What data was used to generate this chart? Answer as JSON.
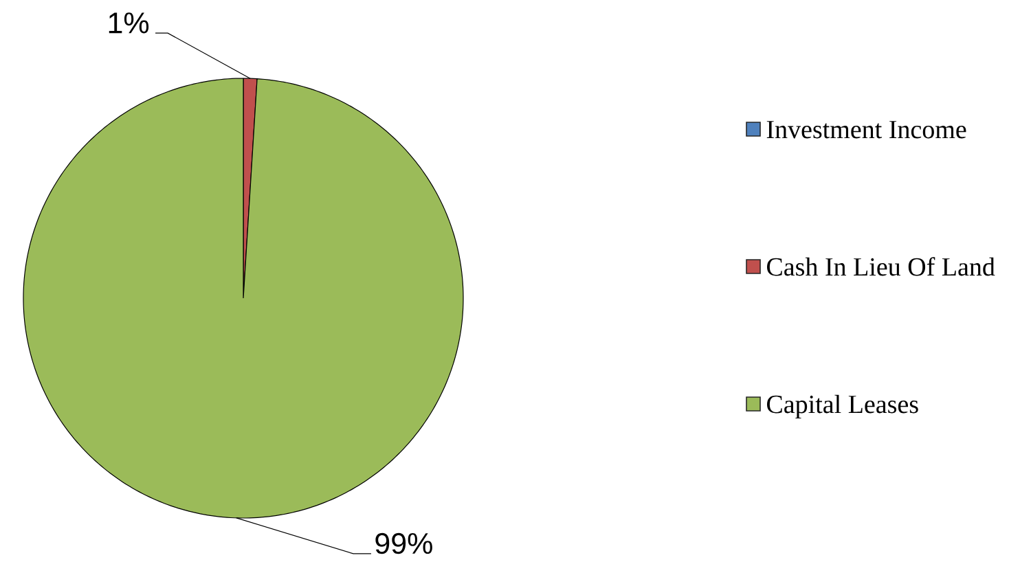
{
  "chart_data": {
    "type": "pie",
    "categories": [
      "Investment Income",
      "Cash In Lieu Of Land",
      "Capital Leases"
    ],
    "values": [
      0,
      1,
      99
    ],
    "colors": [
      "#4f81bd",
      "#c0504d",
      "#9bbb59"
    ],
    "value_labels": [
      null,
      "1%",
      "99%"
    ],
    "legend": "right"
  }
}
